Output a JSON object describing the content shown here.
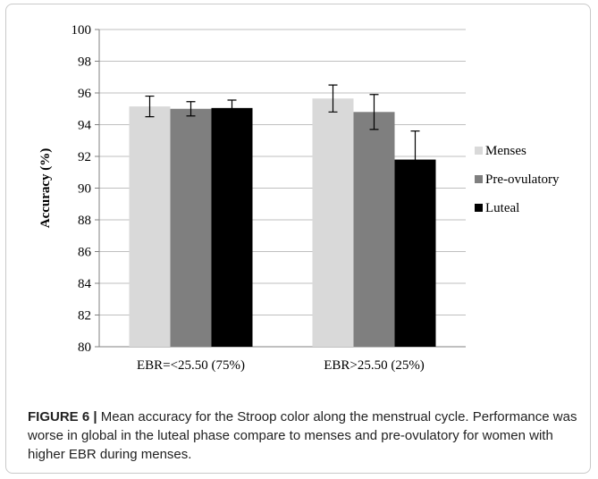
{
  "chart_data": {
    "type": "bar",
    "ylabel": "Accuracy (%)",
    "ylim": [
      80,
      100
    ],
    "yticks": [
      "80",
      "82",
      "84",
      "86",
      "88",
      "90",
      "92",
      "94",
      "96",
      "98",
      "100"
    ],
    "grid": true,
    "legend_position": "right",
    "categories": [
      "EBR=<25.50 (75%)",
      "EBR>25.50 (25%)"
    ],
    "series": [
      {
        "name": "Menses",
        "color": "#d9d9d9",
        "values": [
          95.15,
          95.65
        ],
        "errors": [
          0.65,
          0.85
        ]
      },
      {
        "name": "Pre-ovulatory",
        "color": "#7f7f7f",
        "values": [
          95.0,
          94.8
        ],
        "errors": [
          0.45,
          1.1
        ]
      },
      {
        "name": "Luteal",
        "color": "#000000",
        "values": [
          95.05,
          91.8
        ],
        "errors": [
          0.5,
          1.8
        ]
      }
    ]
  },
  "caption": {
    "label": "FIGURE 6 |",
    "text": " Mean accuracy for the Stroop color along the menstrual cycle. Performance was worse in global in the luteal phase compare to menses and pre-ovulatory for women with higher EBR during menses."
  }
}
